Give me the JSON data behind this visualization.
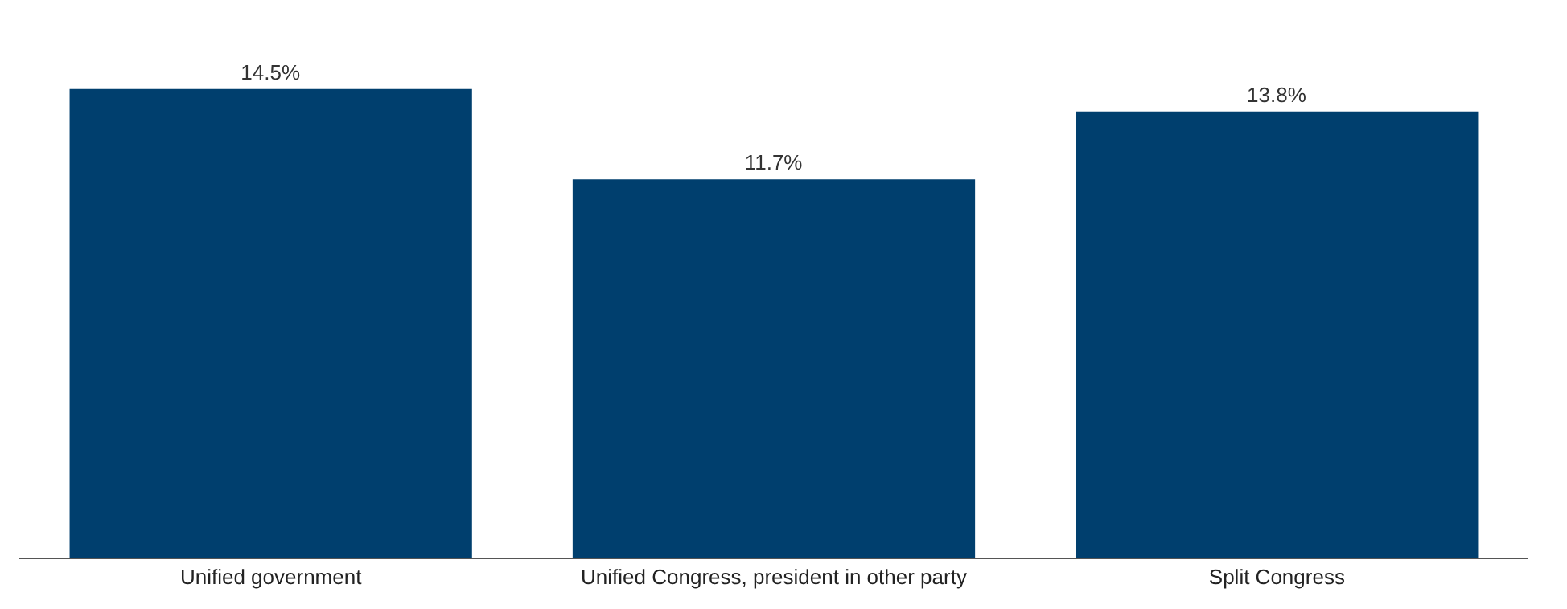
{
  "chart_data": {
    "type": "bar",
    "categories": [
      "Unified government",
      "Unified Congress, president in other party",
      "Split Congress"
    ],
    "values": [
      14.5,
      11.7,
      13.8
    ],
    "value_labels": [
      "14.5%",
      "11.7%",
      "13.8%"
    ],
    "color": "#003f6e"
  }
}
